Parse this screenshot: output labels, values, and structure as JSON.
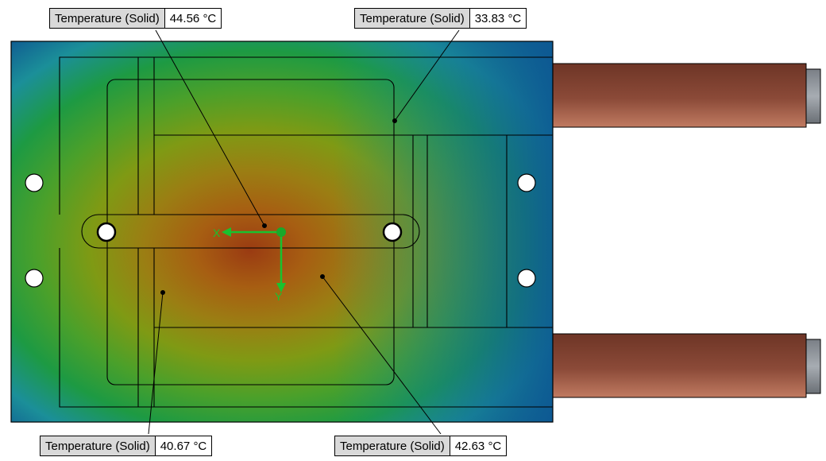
{
  "probes": [
    {
      "name": "Temperature (Solid)",
      "value": "44.56",
      "unit": "°C"
    },
    {
      "name": "Temperature (Solid)",
      "value": "33.83",
      "unit": "°C"
    },
    {
      "name": "Temperature (Solid)",
      "value": "40.67",
      "unit": "°C"
    },
    {
      "name": "Temperature (Solid)",
      "value": "42.63",
      "unit": "°C"
    }
  ],
  "axes": {
    "x_label": "X",
    "y_label": "Y"
  },
  "colors": {
    "hot": "#9a3b12",
    "warm": "#7f9a14",
    "mid": "#1d9a43",
    "cool": "#1b8f99",
    "cold": "#0d4f8f",
    "copper": "#a05a45",
    "axis_triad": "#19c22f"
  }
}
